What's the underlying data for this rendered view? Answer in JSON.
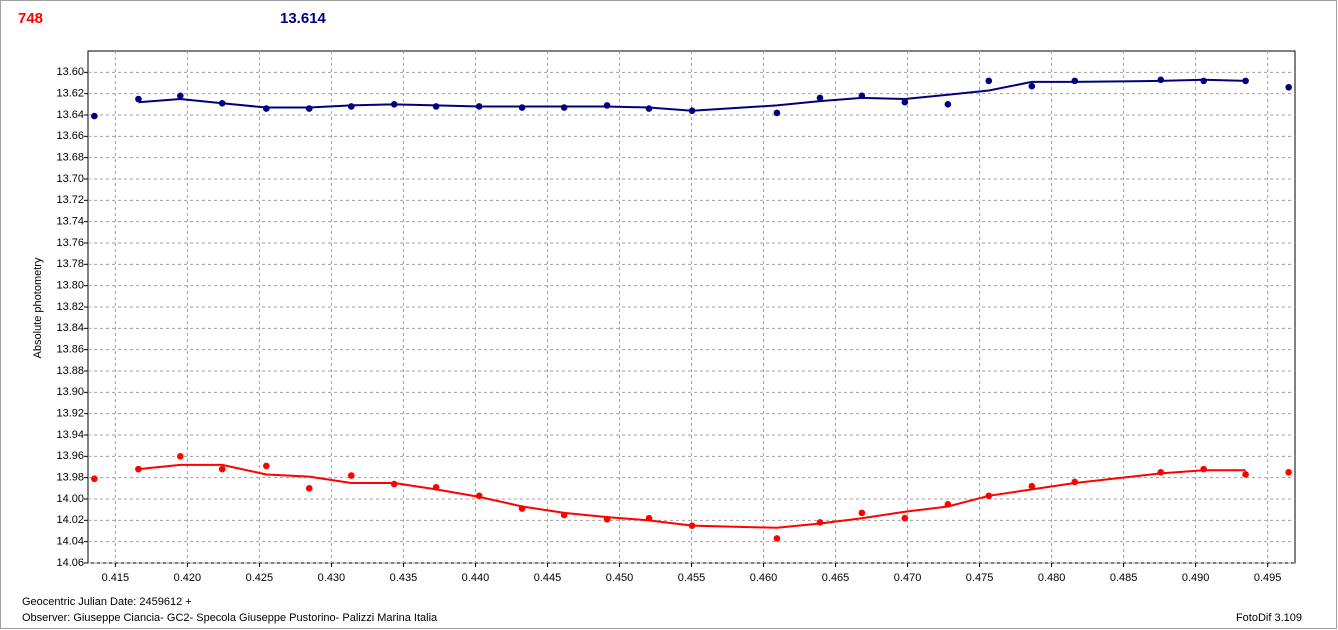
{
  "header": {
    "count": "748",
    "mean": "13.614"
  },
  "footer": {
    "date": "Geocentric Julian Date: 2459612 +",
    "observer": "Observer: Giuseppe Ciancia- GC2- Specola Giuseppe Pustorino- Palizzi Marina Italia",
    "software": "FotoDif 3.109"
  },
  "chart_data": {
    "type": "scatter",
    "ylabel": "Absolute photometry",
    "y_inverted": true,
    "grid": true,
    "x": [
      0.41354,
      0.4166,
      0.41951,
      0.42242,
      0.42548,
      0.42846,
      0.43138,
      0.43436,
      0.43727,
      0.44026,
      0.44324,
      0.44616,
      0.44914,
      0.45205,
      0.45504,
      0.46093,
      0.46392,
      0.46683,
      0.46981,
      0.4728,
      0.47564,
      0.47863,
      0.48161,
      0.48758,
      0.49056,
      0.49347,
      0.49646
    ],
    "series": [
      {
        "color": "#00007f",
        "style": "markers",
        "values": [
          13.641,
          13.625,
          13.622,
          13.629,
          13.634,
          13.634,
          13.632,
          13.63,
          13.632,
          13.632,
          13.633,
          13.633,
          13.631,
          13.634,
          13.636,
          13.638,
          13.624,
          13.622,
          13.628,
          13.63,
          13.608,
          13.613,
          13.608,
          13.607,
          13.608,
          13.608,
          13.614
        ]
      },
      {
        "color": "#00007f",
        "style": "line",
        "values": [
          null,
          13.628,
          13.625,
          13.629,
          13.633,
          13.633,
          13.631,
          13.63,
          13.631,
          13.632,
          13.632,
          13.632,
          13.632,
          13.633,
          13.636,
          13.631,
          13.627,
          13.624,
          13.625,
          13.621,
          13.617,
          13.609,
          13.609,
          13.608,
          13.607,
          13.608,
          null
        ]
      },
      {
        "color": "#ff0000",
        "style": "markers",
        "values": [
          13.981,
          13.972,
          13.96,
          13.972,
          13.969,
          13.99,
          13.978,
          13.986,
          13.989,
          13.997,
          14.009,
          14.015,
          14.019,
          14.018,
          14.025,
          14.037,
          14.022,
          14.013,
          14.018,
          14.005,
          13.997,
          13.988,
          13.984,
          13.975,
          13.972,
          13.977,
          13.975
        ]
      },
      {
        "color": "#ff0000",
        "style": "line",
        "values": [
          null,
          13.972,
          13.968,
          13.968,
          13.977,
          13.979,
          13.985,
          13.985,
          13.991,
          13.998,
          14.007,
          14.013,
          14.017,
          14.02,
          14.025,
          14.027,
          14.023,
          14.018,
          14.012,
          14.007,
          13.997,
          13.991,
          13.985,
          13.976,
          13.973,
          13.973,
          null
        ]
      }
    ],
    "xlim": [
      0.4131,
      0.4969
    ],
    "xticks": [
      0.415,
      {
        "value": 0.42,
        "label": "0.420"
      },
      0.425,
      {
        "value": 0.43,
        "label": "0.430"
      },
      0.435,
      {
        "value": 0.44,
        "label": "0.440"
      },
      0.445,
      {
        "value": 0.45,
        "label": "0.450"
      },
      0.455,
      {
        "value": 0.46,
        "label": "0.460"
      },
      0.465,
      {
        "value": 0.47,
        "label": "0.470"
      },
      0.475,
      {
        "value": 0.48,
        "label": "0.480"
      },
      0.485,
      {
        "value": 0.49,
        "label": "0.490"
      },
      0.495
    ],
    "ylim": [
      13.58,
      14.06
    ],
    "yticks": [
      {
        "value": 13.6,
        "label": "13.60"
      },
      13.62,
      13.64,
      13.66,
      13.68,
      {
        "value": 13.7,
        "label": "13.70"
      },
      13.72,
      13.74,
      13.76,
      13.78,
      {
        "value": 13.8,
        "label": "13.80"
      },
      13.82,
      13.84,
      13.86,
      13.88,
      {
        "value": 13.9,
        "label": "13.90"
      },
      13.92,
      13.94,
      13.96,
      13.98,
      {
        "value": 14,
        "label": "14.00"
      },
      14.02,
      14.04,
      14.06
    ]
  }
}
